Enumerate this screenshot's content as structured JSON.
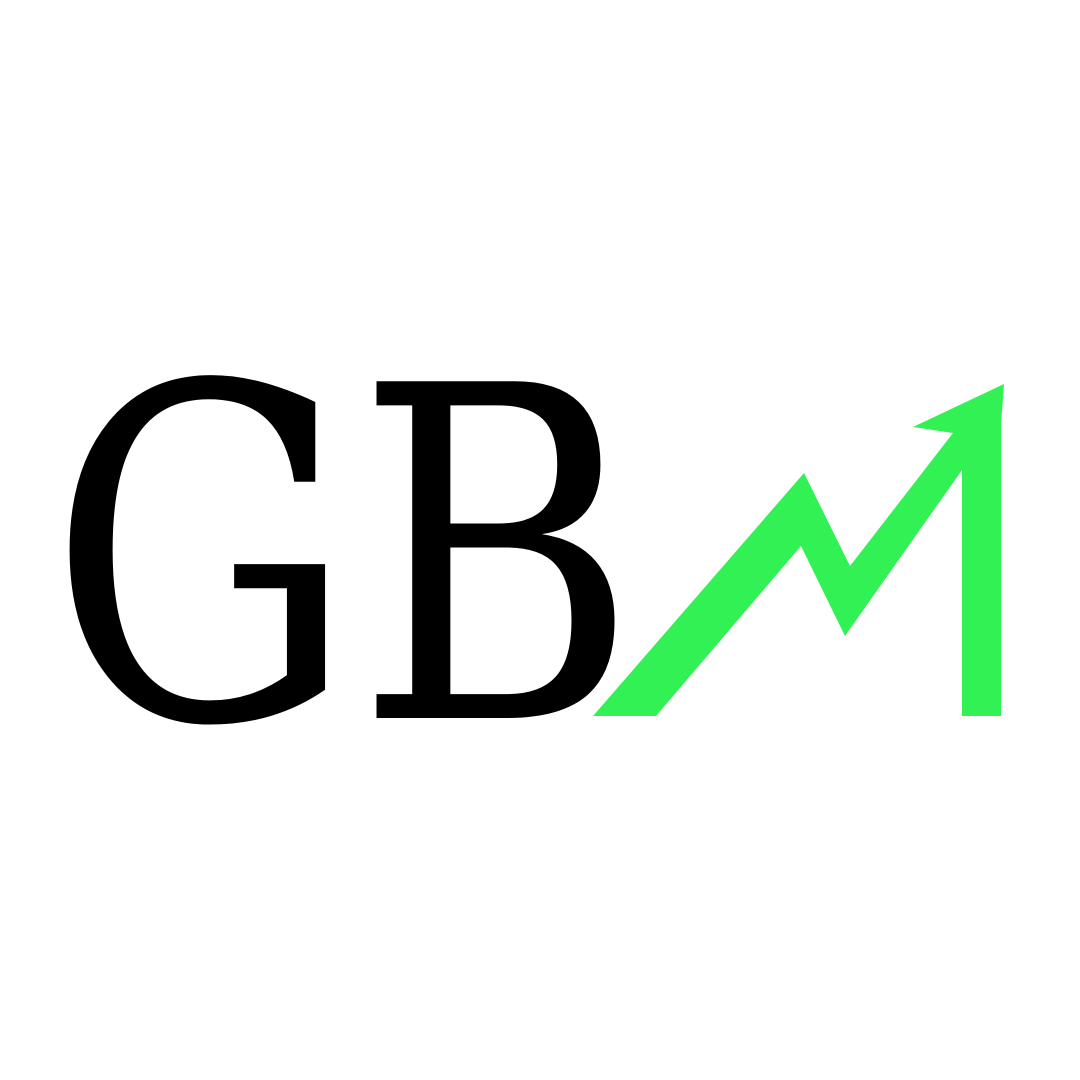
{
  "logo": {
    "text": "GB",
    "text_color": "#000000",
    "arrow_color": "#32f154",
    "arrow_icon": "trending-up-arrow-icon",
    "background": "#ffffff"
  }
}
